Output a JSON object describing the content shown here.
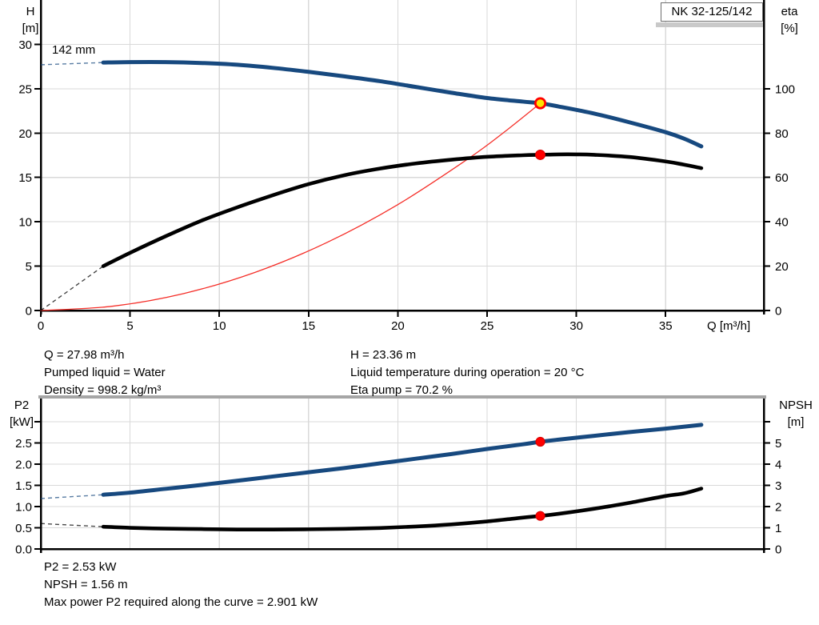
{
  "title_box": {
    "label": "NK 32-125/142"
  },
  "impeller_label": "142 mm",
  "info_top": {
    "left": [
      "Q = 27.98 m³/h",
      "Pumped liquid = Water",
      "Density = 998.2 kg/m³"
    ],
    "right": [
      "H = 23.36 m",
      "Liquid temperature during operation = 20 °C",
      "Eta pump = 70.2 %"
    ]
  },
  "info_bottom": [
    "P2 = 2.53 kW",
    "NPSH = 1.56 m",
    "Max power P2 required along the curve = 2.901 kW"
  ],
  "colors": {
    "curve_blue": "#17497f",
    "curve_black": "#000000",
    "curve_red": "#f5302a",
    "marker_red": "#ff0000",
    "marker_red_edge": "#d40000",
    "marker_yellow": "#ffe400",
    "grid": "#d9d9d9",
    "axis": "#000000",
    "chart_divider": "#a6a6a6"
  },
  "chart_data": [
    {
      "type": "line",
      "name": "qh-eta",
      "title": "NK 32-125/142",
      "legend_position": "none",
      "grid": true,
      "x_axis": {
        "label": "Q [m³/h]",
        "min": 0,
        "max": 40.5,
        "ticks": [
          {
            "v": 0,
            "l": "0"
          },
          {
            "v": 5,
            "l": "5"
          },
          {
            "v": 10,
            "l": "10"
          },
          {
            "v": 15,
            "l": "15"
          },
          {
            "v": 20,
            "l": "20"
          },
          {
            "v": 25,
            "l": "25"
          },
          {
            "v": 30,
            "l": "30"
          },
          {
            "v": 35,
            "l": "35"
          }
        ]
      },
      "y_left": {
        "label": [
          "H",
          "[m]"
        ],
        "min": 0,
        "max": 35,
        "ticks": [
          {
            "v": 0,
            "l": "0"
          },
          {
            "v": 5,
            "l": "5"
          },
          {
            "v": 10,
            "l": "10"
          },
          {
            "v": 15,
            "l": "15"
          },
          {
            "v": 20,
            "l": "20"
          },
          {
            "v": 25,
            "l": "25"
          },
          {
            "v": 30,
            "l": "30"
          }
        ]
      },
      "y_right": {
        "label": [
          "eta",
          "[%]"
        ],
        "min": 0,
        "max": 140,
        "ticks": [
          {
            "v": 0,
            "l": "0"
          },
          {
            "v": 20,
            "l": "20"
          },
          {
            "v": 40,
            "l": "40"
          },
          {
            "v": 60,
            "l": "60"
          },
          {
            "v": 80,
            "l": "80"
          },
          {
            "v": 100,
            "l": "100"
          }
        ]
      },
      "series": [
        {
          "name": "head-curve-142mm",
          "axis": "left",
          "color_key": "curve_blue",
          "width": 5,
          "lead": [
            [
              0,
              27.7
            ],
            [
              3.5,
              27.95
            ]
          ],
          "points": [
            [
              3.5,
              27.95
            ],
            [
              5,
              28.0
            ],
            [
              7,
              28.0
            ],
            [
              9,
              27.9
            ],
            [
              11,
              27.7
            ],
            [
              13,
              27.35
            ],
            [
              15,
              26.9
            ],
            [
              17,
              26.4
            ],
            [
              19,
              25.85
            ],
            [
              21,
              25.2
            ],
            [
              23,
              24.55
            ],
            [
              25,
              23.95
            ],
            [
              27,
              23.55
            ],
            [
              27.98,
              23.36
            ],
            [
              29,
              23.0
            ],
            [
              31,
              22.2
            ],
            [
              33,
              21.2
            ],
            [
              35,
              20.1
            ],
            [
              36,
              19.4
            ],
            [
              37,
              18.5
            ]
          ]
        },
        {
          "name": "eta-curve",
          "axis": "right",
          "color_key": "curve_black",
          "width": 4.6,
          "lead": [
            [
              0,
              0
            ],
            [
              3.5,
              20
            ]
          ],
          "points": [
            [
              3.5,
              20
            ],
            [
              5,
              26
            ],
            [
              7,
              33.5
            ],
            [
              9,
              40.5
            ],
            [
              11,
              46.5
            ],
            [
              13,
              52
            ],
            [
              15,
              57
            ],
            [
              17,
              61
            ],
            [
              19,
              64
            ],
            [
              21,
              66.3
            ],
            [
              23,
              68
            ],
            [
              25,
              69.3
            ],
            [
              27,
              70
            ],
            [
              27.98,
              70.2
            ],
            [
              29,
              70.4
            ],
            [
              30,
              70.4
            ],
            [
              31,
              70.2
            ],
            [
              33,
              69.2
            ],
            [
              35,
              67.2
            ],
            [
              36,
              65.8
            ],
            [
              37,
              64.2
            ]
          ]
        },
        {
          "name": "duty-parabola",
          "axis": "left",
          "color_key": "curve_red",
          "width": 1.3,
          "points": [
            [
              0,
              0
            ],
            [
              4,
              0.48
            ],
            [
              8,
              1.91
            ],
            [
              12,
              4.3
            ],
            [
              16,
              7.64
            ],
            [
              20,
              11.94
            ],
            [
              24,
              17.19
            ],
            [
              26,
              20.17
            ],
            [
              27.98,
              23.36
            ]
          ]
        }
      ],
      "markers": [
        {
          "name": "duty-point-qh",
          "axis": "left",
          "x": 27.98,
          "y": 23.36,
          "r": 6.2,
          "fill_key": "marker_yellow",
          "stroke_key": "marker_red",
          "stroke_width": 2.8
        },
        {
          "name": "duty-point-eta",
          "axis": "right",
          "x": 27.98,
          "y": 70.2,
          "r": 6,
          "fill_key": "marker_red",
          "stroke_key": "marker_red_edge",
          "stroke_width": 1
        }
      ]
    },
    {
      "type": "line",
      "name": "p2-npsh",
      "legend_position": "none",
      "grid": true,
      "x_axis": {
        "label": "",
        "min": 0,
        "max": 40.5,
        "ticks": [
          {
            "v": 5,
            "l": ""
          },
          {
            "v": 10,
            "l": ""
          },
          {
            "v": 15,
            "l": ""
          },
          {
            "v": 20,
            "l": ""
          },
          {
            "v": 25,
            "l": ""
          },
          {
            "v": 30,
            "l": ""
          },
          {
            "v": 35,
            "l": ""
          }
        ]
      },
      "y_left": {
        "label": [
          "P2",
          "[kW]"
        ],
        "min": 0,
        "max": 3.55,
        "ticks": [
          {
            "v": 0,
            "l": "0.0"
          },
          {
            "v": 0.5,
            "l": "0.5"
          },
          {
            "v": 1,
            "l": "1.0"
          },
          {
            "v": 1.5,
            "l": "1.5"
          },
          {
            "v": 2,
            "l": "2.0"
          },
          {
            "v": 2.5,
            "l": "2.5"
          },
          {
            "v": 3,
            "l": ""
          }
        ]
      },
      "y_right": {
        "label": [
          "NPSH",
          "[m]"
        ],
        "min": 0,
        "max": 7.1,
        "ticks": [
          {
            "v": 0,
            "l": "0"
          },
          {
            "v": 1,
            "l": "1"
          },
          {
            "v": 2,
            "l": "2"
          },
          {
            "v": 3,
            "l": "3"
          },
          {
            "v": 4,
            "l": "4"
          },
          {
            "v": 5,
            "l": "5"
          },
          {
            "v": 6,
            "l": ""
          }
        ]
      },
      "series": [
        {
          "name": "p2-curve",
          "axis": "left",
          "color_key": "curve_blue",
          "width": 5,
          "lead": [
            [
              0,
              1.19
            ],
            [
              3.5,
              1.28
            ]
          ],
          "points": [
            [
              3.5,
              1.28
            ],
            [
              5,
              1.33
            ],
            [
              7,
              1.42
            ],
            [
              9,
              1.51
            ],
            [
              11,
              1.61
            ],
            [
              13,
              1.71
            ],
            [
              15,
              1.81
            ],
            [
              17,
              1.91
            ],
            [
              19,
              2.02
            ],
            [
              21,
              2.13
            ],
            [
              23,
              2.24
            ],
            [
              25,
              2.36
            ],
            [
              27,
              2.47
            ],
            [
              27.98,
              2.53
            ],
            [
              29,
              2.58
            ],
            [
              31,
              2.67
            ],
            [
              33,
              2.76
            ],
            [
              35,
              2.84
            ],
            [
              37,
              2.93
            ]
          ]
        },
        {
          "name": "npsh-curve",
          "axis": "right",
          "color_key": "curve_black",
          "width": 4.6,
          "lead": [
            [
              0,
              1.2
            ],
            [
              3.5,
              1.05
            ]
          ],
          "points": [
            [
              3.5,
              1.05
            ],
            [
              5,
              1.0
            ],
            [
              7,
              0.96
            ],
            [
              9,
              0.94
            ],
            [
              11,
              0.92
            ],
            [
              13,
              0.92
            ],
            [
              15,
              0.93
            ],
            [
              17,
              0.95
            ],
            [
              19,
              0.99
            ],
            [
              21,
              1.06
            ],
            [
              23,
              1.16
            ],
            [
              25,
              1.3
            ],
            [
              27,
              1.48
            ],
            [
              27.98,
              1.56
            ],
            [
              29,
              1.66
            ],
            [
              31,
              1.9
            ],
            [
              33,
              2.18
            ],
            [
              35,
              2.5
            ],
            [
              36,
              2.62
            ],
            [
              37,
              2.85
            ]
          ]
        }
      ],
      "markers": [
        {
          "name": "duty-point-p2",
          "axis": "left",
          "x": 27.98,
          "y": 2.53,
          "r": 5.6,
          "fill_key": "marker_red",
          "stroke_key": "marker_red_edge",
          "stroke_width": 1
        },
        {
          "name": "duty-point-npsh",
          "axis": "right",
          "x": 27.98,
          "y": 1.56,
          "r": 5.6,
          "fill_key": "marker_red",
          "stroke_key": "marker_red_edge",
          "stroke_width": 1
        }
      ]
    }
  ]
}
